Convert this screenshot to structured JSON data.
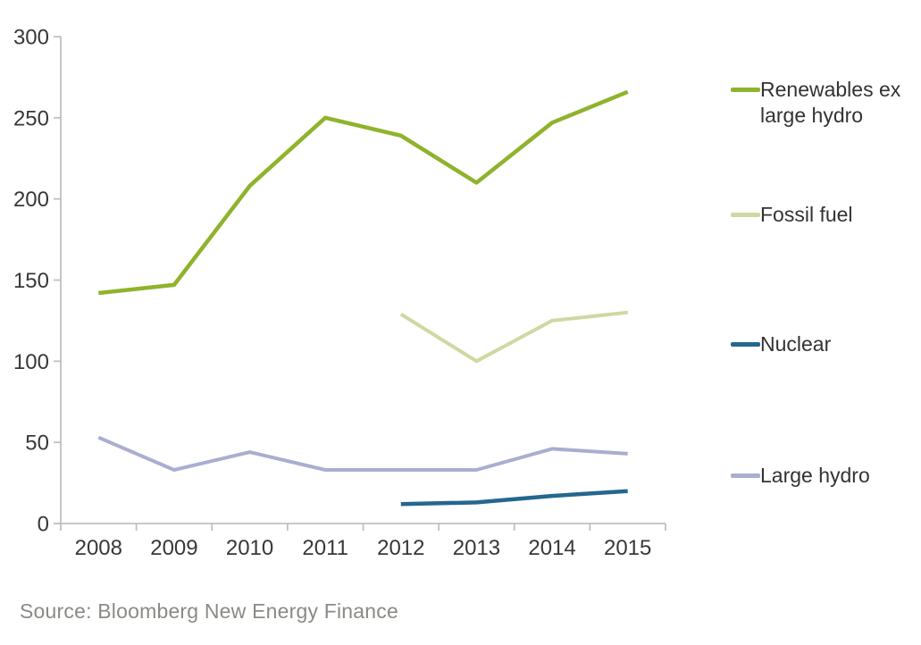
{
  "chart_data": {
    "type": "line",
    "title": "",
    "xlabel": "",
    "ylabel": "",
    "categories": [
      "2008",
      "2009",
      "2010",
      "2011",
      "2012",
      "2013",
      "2014",
      "2015"
    ],
    "series": [
      {
        "name": "Renewables ex large hydro",
        "color": "#8FB32C",
        "line_width": 4.5,
        "values": [
          142,
          147,
          208,
          250,
          239,
          210,
          247,
          266
        ]
      },
      {
        "name": "Fossil fuel",
        "color": "#CDD9A2",
        "line_width": 4,
        "values": [
          null,
          null,
          null,
          null,
          129,
          100,
          125,
          130
        ]
      },
      {
        "name": "Nuclear",
        "color": "#24678F",
        "line_width": 4.5,
        "values": [
          null,
          null,
          null,
          null,
          12,
          13,
          17,
          20
        ]
      },
      {
        "name": "Large hydro",
        "color": "#A9AED1",
        "line_width": 4,
        "values": [
          53,
          33,
          44,
          33,
          33,
          33,
          46,
          43
        ]
      }
    ],
    "ylim": [
      0,
      300
    ],
    "yticks": [
      0,
      50,
      100,
      150,
      200,
      250,
      300
    ],
    "grid": false,
    "legend_position": "right",
    "axis_color": "#C0C0C0",
    "tick_label_color": "#383838"
  },
  "source": {
    "text": "Source: Bloomberg New Energy Finance"
  }
}
